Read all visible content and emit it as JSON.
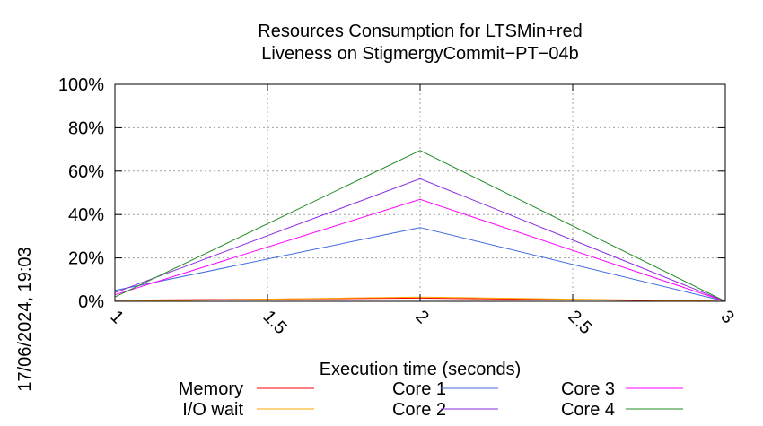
{
  "chart_data": {
    "type": "line",
    "title": [
      "Resources Consumption for LTSMin+red",
      "Liveness on StigmergyCommit−PT−04b"
    ],
    "xlabel": "Execution time (seconds)",
    "ylabel": "",
    "side_label": "17/06/2024, 19:03",
    "xlim": [
      1,
      3
    ],
    "ylim": [
      0,
      100
    ],
    "x_ticks": [
      1,
      1.5,
      2,
      2.5,
      3
    ],
    "x_tick_labels": [
      "1",
      "1.5",
      "2",
      "2.5",
      "3"
    ],
    "y_ticks": [
      0,
      20,
      40,
      60,
      80,
      100
    ],
    "y_tick_labels": [
      "0%",
      "20%",
      "40%",
      "60%",
      "80%",
      "100%"
    ],
    "grid": true,
    "legend_position": "bottom",
    "x": [
      1,
      2,
      3
    ],
    "series": [
      {
        "name": "Memory",
        "color": "#ff0000",
        "values": [
          0.5,
          1.5,
          0
        ]
      },
      {
        "name": "I/O wait",
        "color": "#ffa500",
        "values": [
          0,
          2,
          0
        ]
      },
      {
        "name": "Core 1",
        "color": "#4169e1",
        "values": [
          5,
          34,
          0
        ]
      },
      {
        "name": "Core 2",
        "color": "#8a2be2",
        "values": [
          4,
          56.5,
          0
        ]
      },
      {
        "name": "Core 3",
        "color": "#ff00ff",
        "values": [
          3,
          47,
          0
        ]
      },
      {
        "name": "Core 4",
        "color": "#228b22",
        "values": [
          2,
          69.5,
          0
        ]
      }
    ]
  }
}
